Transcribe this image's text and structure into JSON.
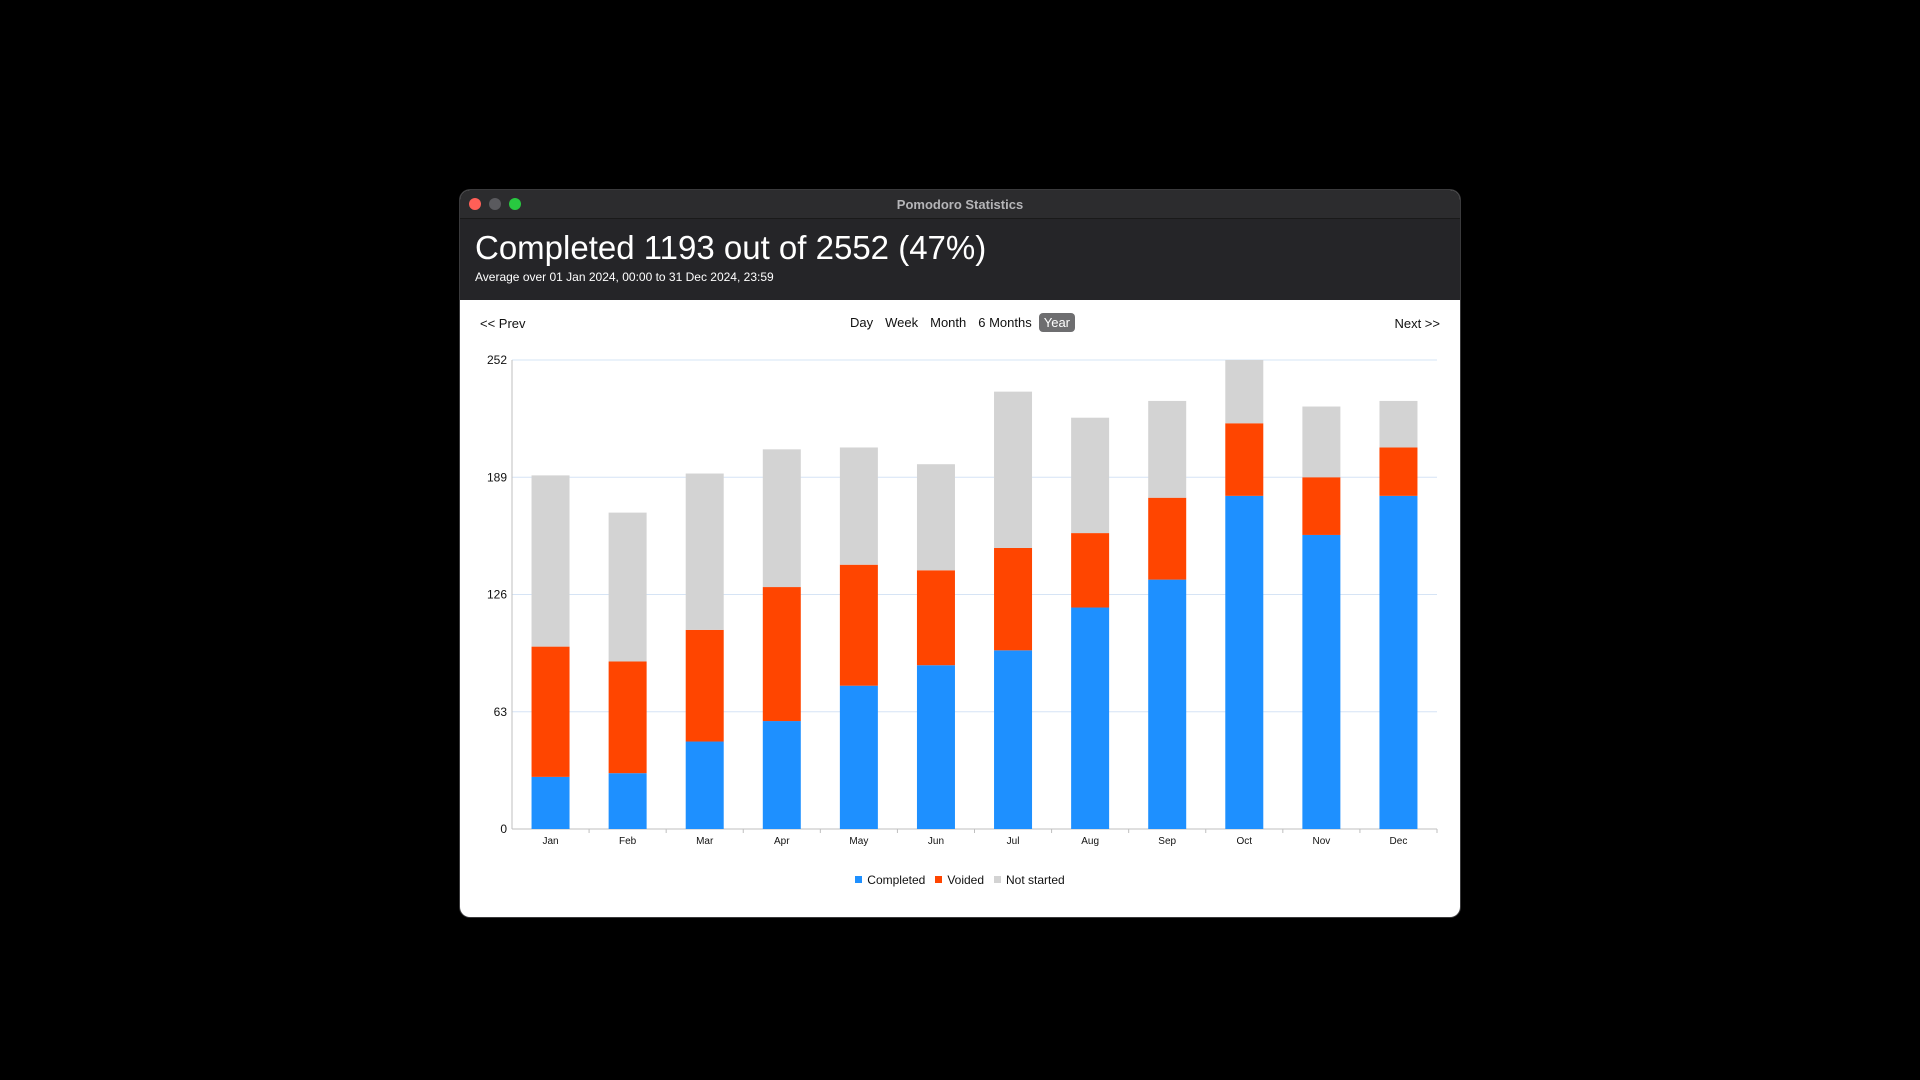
{
  "window": {
    "title": "Pomodoro Statistics"
  },
  "header": {
    "headline": "Completed 1193 out of 2552 (47%)",
    "subline": "Average over 01 Jan 2024, 00:00 to 31 Dec 2024, 23:59"
  },
  "nav": {
    "prev_label": "<< Prev",
    "next_label": "Next >>"
  },
  "range": {
    "options": [
      "Day",
      "Week",
      "Month",
      "6 Months",
      "Year"
    ],
    "selected": "Year"
  },
  "colors": {
    "completed": "#1e90ff",
    "voided": "#ff4500",
    "not_started": "#d3d3d3",
    "gridline": "#d6e4f5"
  },
  "chart_data": {
    "type": "bar",
    "stacked": true,
    "categories": [
      "Jan",
      "Feb",
      "Mar",
      "Apr",
      "May",
      "Jun",
      "Jul",
      "Aug",
      "Sep",
      "Oct",
      "Nov",
      "Dec"
    ],
    "series": [
      {
        "name": "Completed",
        "color": "#1e90ff",
        "values": [
          28,
          30,
          47,
          58,
          77,
          88,
          96,
          119,
          134,
          179,
          158,
          179
        ]
      },
      {
        "name": "Voided",
        "color": "#ff4500",
        "values": [
          70,
          60,
          60,
          72,
          65,
          51,
          55,
          40,
          44,
          39,
          31,
          26
        ]
      },
      {
        "name": "Not started",
        "color": "#d3d3d3",
        "values": [
          92,
          80,
          84,
          74,
          63,
          57,
          84,
          62,
          52,
          34,
          38,
          25
        ]
      }
    ],
    "yticks": [
      0,
      63,
      126,
      189,
      252
    ],
    "ylim": [
      0,
      252
    ],
    "grid": true,
    "legend": "bottom"
  }
}
